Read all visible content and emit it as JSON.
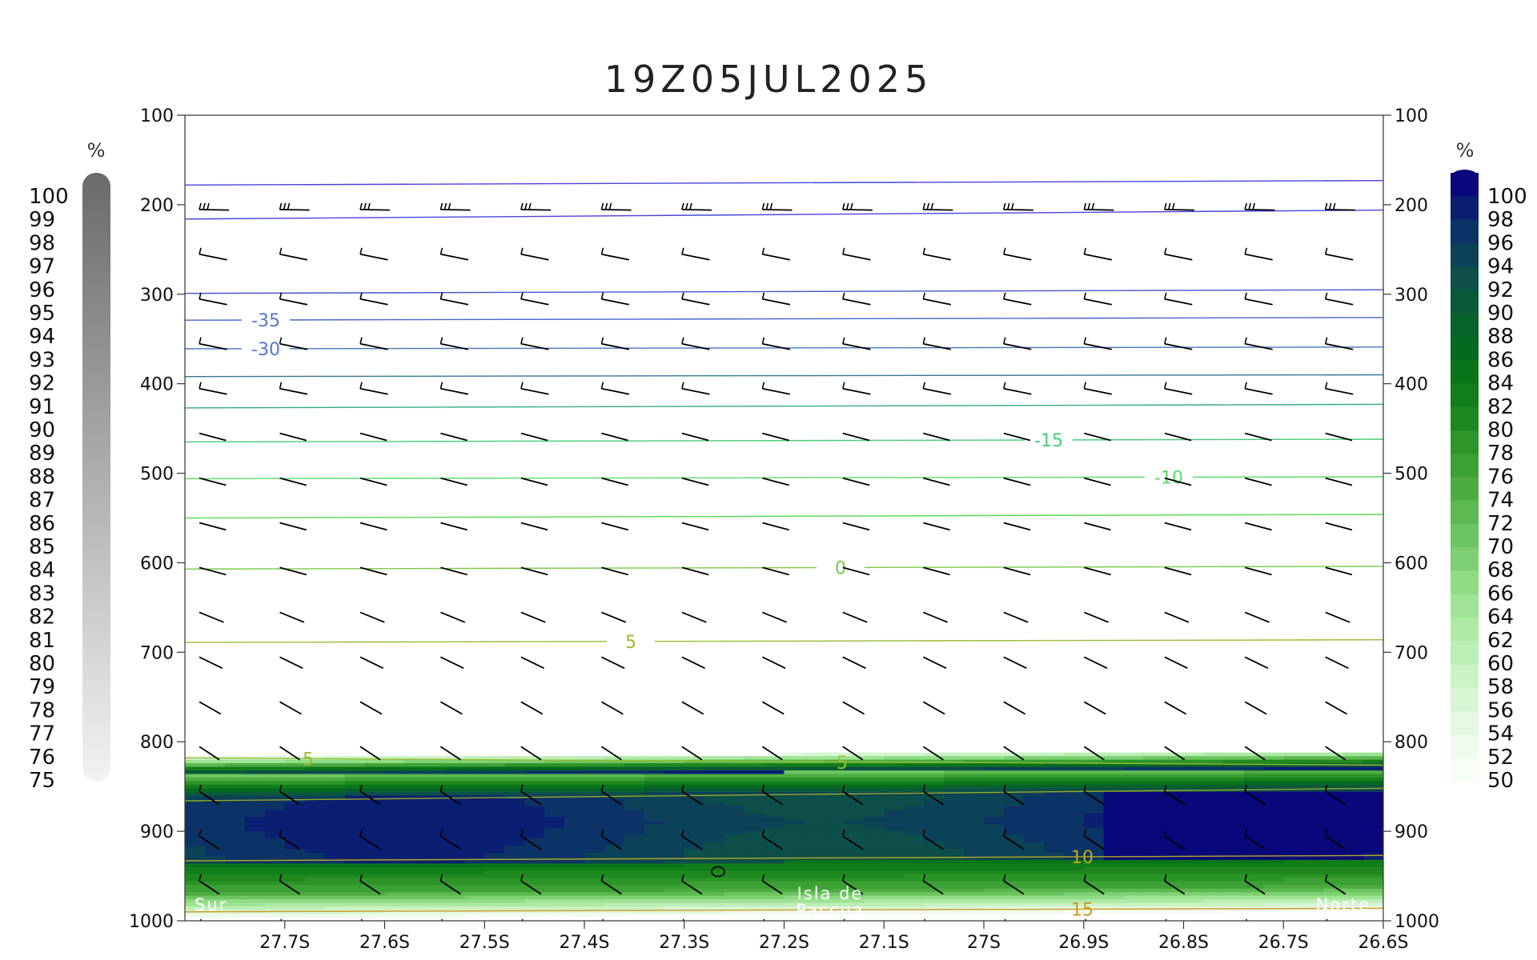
{
  "chart_data": {
    "type": "heatmap",
    "title": "19Z05JUL2025",
    "x": {
      "ticks": [
        "27.7S",
        "27.6S",
        "27.5S",
        "27.4S",
        "27.3S",
        "27.2S",
        "27.1S",
        "27S",
        "26.9S",
        "26.8S",
        "26.7S",
        "26.6S"
      ],
      "range": [
        "27.8S",
        "26.6S"
      ]
    },
    "y": {
      "ticks": [
        100,
        200,
        300,
        400,
        500,
        600,
        700,
        800,
        900,
        1000
      ],
      "range": [
        1000,
        100
      ],
      "inverted": true
    },
    "colorbar_left": {
      "unit": "%",
      "levels": [
        100,
        99,
        98,
        97,
        96,
        95,
        94,
        93,
        92,
        91,
        90,
        89,
        88,
        87,
        86,
        85,
        84,
        83,
        82,
        81,
        80,
        79,
        78,
        77,
        76,
        75
      ],
      "color_dark": "#6a6a6a",
      "color_light": "#f3f3f3"
    },
    "colorbar_right": {
      "unit": "%",
      "levels": [
        100,
        98,
        96,
        94,
        92,
        90,
        88,
        86,
        84,
        82,
        80,
        78,
        76,
        74,
        72,
        70,
        68,
        66,
        64,
        62,
        60,
        58,
        56,
        54,
        52,
        50
      ],
      "colors": [
        "#08087a",
        "#0a1f72",
        "#0c3366",
        "#0c4258",
        "#0d4f4a",
        "#0a5a3a",
        "#07622c",
        "#056a20",
        "#0a7418",
        "#127e1a",
        "#1e881f",
        "#2c9428",
        "#3ca034",
        "#4cac42",
        "#5cb850",
        "#6cc560",
        "#7dd172",
        "#8edc84",
        "#9fe495",
        "#aeeaa6",
        "#bcefb6",
        "#caf3c6",
        "#d7f6d4",
        "#e3f9e1",
        "#eefbec",
        "#f6fdf5"
      ]
    },
    "temperature_contours": [
      {
        "label": "-35",
        "color": "#5577cc"
      },
      {
        "label": "-30",
        "color": "#5577cc"
      },
      {
        "label": "-15",
        "color": "#44cc77"
      },
      {
        "label": "-10",
        "color": "#55dd66"
      },
      {
        "label": "0",
        "color": "#77cc44"
      },
      {
        "label": "5",
        "color": "#99bb33"
      },
      {
        "label": "5",
        "color": "#99bb33"
      },
      {
        "label": "10",
        "color": "#bbaa22"
      },
      {
        "label": "15",
        "color": "#cc9922"
      }
    ],
    "annotations": {
      "left": "Sur",
      "center_line1": "Isla de",
      "center_line2": "Pascua",
      "right": "Norte"
    }
  }
}
